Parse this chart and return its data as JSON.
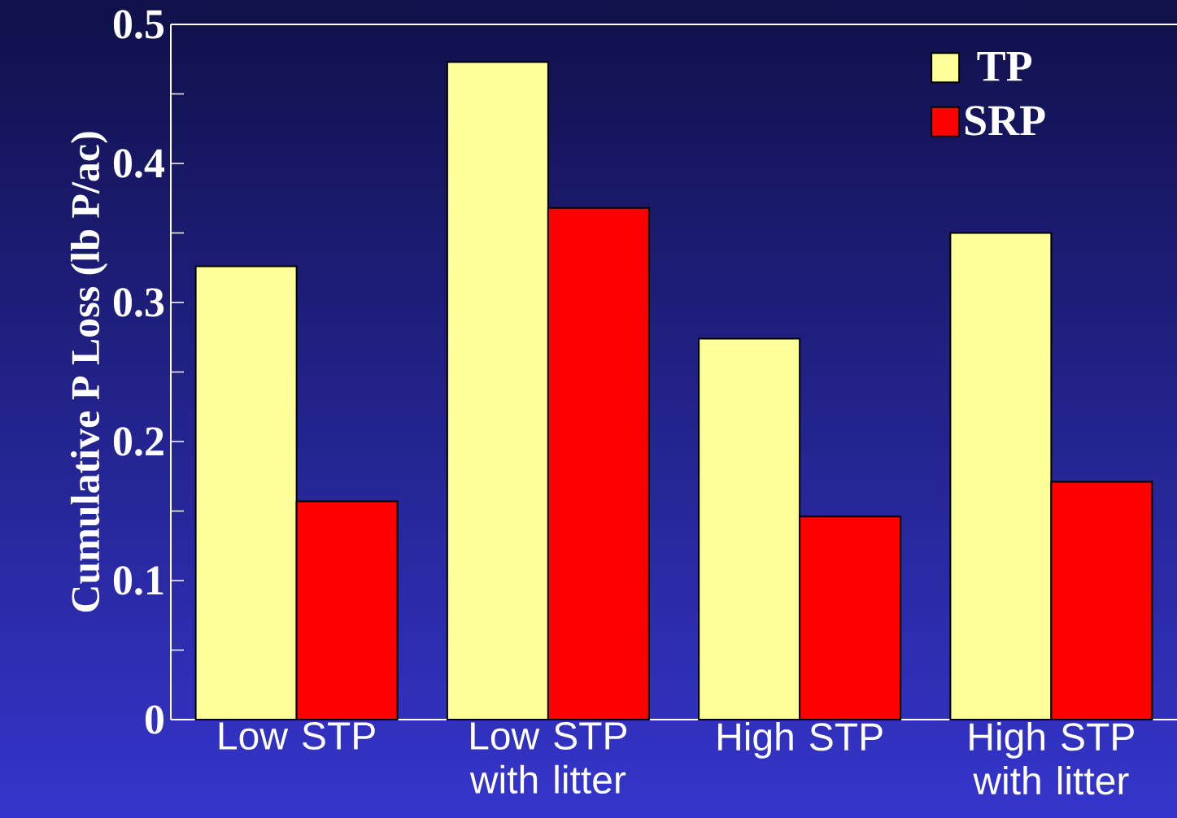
{
  "chart_data": {
    "type": "bar",
    "ylabel": "Cumulative P Loss (lb P/ac)",
    "categories": [
      "Low STP",
      "Low STP with litter",
      "High STP",
      "High STP with litter"
    ],
    "series": [
      {
        "name": "TP",
        "color": "#ffff99",
        "values": [
          0.326,
          0.473,
          0.274,
          0.35
        ]
      },
      {
        "name": "SRP",
        "color": "#ff0000",
        "values": [
          0.157,
          0.368,
          0.146,
          0.171
        ]
      }
    ],
    "ylim": [
      0,
      0.5
    ],
    "yticks": [
      0,
      {
        "value": 0.05,
        "label": null
      },
      0.1,
      {
        "value": 0.15,
        "label": null
      },
      0.2,
      {
        "value": 0.25,
        "label": null
      },
      0.3,
      {
        "value": 0.35,
        "label": null
      },
      0.4,
      {
        "value": 0.45,
        "label": null
      },
      0.5
    ],
    "legend": "top right"
  }
}
